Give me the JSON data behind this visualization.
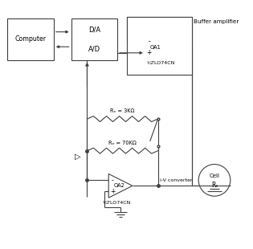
{
  "background_color": "#ffffff",
  "line_color": "#404040",
  "text_color": "#000000",
  "font_size": 6.0,
  "labels": {
    "computer": "Computer",
    "da": "D/A",
    "ad": "A/D",
    "oa1_label": "OA1",
    "oa1_sub": "¼TLO74CN",
    "buffer_amp": "Buffer amplifier",
    "oa2_label": "OA2",
    "oa2_sub": "¼TLO74CN",
    "rf1": "Rₑ = 3KΩ",
    "rf2": "Rₑ = 70KΩ",
    "iv_conv": "i-V converter",
    "cell": "Cell",
    "rs": "Rₛ",
    "rp_arrow": "▷"
  }
}
